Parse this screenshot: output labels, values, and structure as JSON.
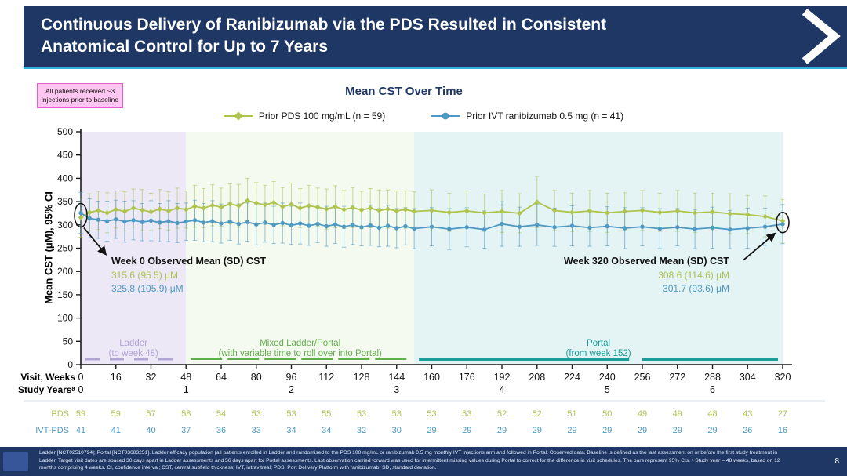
{
  "colors": {
    "navy": "#1f3765",
    "cyan_accent": "#2db3d8",
    "pink_bg": "#ffc6f1",
    "pink_border": "#e05fc9",
    "chart_title": "#1f3765"
  },
  "slide": {
    "title_line1": "Continuous Delivery of Ranibizumab via the PDS Resulted in Consistent",
    "title_line2": "Anatomical Control for Up to 7 Years",
    "page_number": "8",
    "footnote": "Ladder [NCT02510794]; Portal [NCT03683251]. Ladder efficacy population (all patients enrolled in Ladder and randomised to the PDS 100 mg/mL or ranibizumab 0.5 mg monthly IVT injections arm and followed in Portal. Observed data. Baseline is defined as the last assessment on or before the first study treatment in Ladder. Target visit dates are spaced 30 days apart in Ladder assessments and 56 days apart for Portal assessments. Last observation carried forward was used for intermittent missing values during Portal to correct for the difference in visit schedules. The bars represent 95% CIs. ᵃ Study year = 48 weeks, based on 12 months comprising 4 weeks. CI, confidence interval; CST, central subfield thickness; IVT, intravitreal; PDS, Port Delivery Platform with ranibizumab; SD, standard deviation."
  },
  "note_box": {
    "text": "All patients received ~3 injections prior to baseline"
  },
  "chart_data": {
    "type": "line",
    "title": "Mean CST Over Time",
    "ylabel": "Mean CST (μM), 95% CI",
    "ylim": [
      0,
      500
    ],
    "ytick_step": 50,
    "xlabel_row1": "Visit, Weeks",
    "xlabel_row2": "Study Yearsᵃ",
    "x_ticks": [
      0,
      16,
      32,
      48,
      64,
      80,
      96,
      112,
      128,
      144,
      160,
      176,
      192,
      208,
      224,
      240,
      256,
      272,
      288,
      304,
      320
    ],
    "study_years": [
      {
        "week": 0,
        "label": "0"
      },
      {
        "week": 48,
        "label": "1"
      },
      {
        "week": 96,
        "label": "2"
      },
      {
        "week": 144,
        "label": "3"
      },
      {
        "week": 192,
        "label": "4"
      },
      {
        "week": 240,
        "label": "5"
      },
      {
        "week": 288,
        "label": "6"
      }
    ],
    "phases": [
      {
        "label": "Ladder",
        "sublabel": "(to week 48)",
        "start": 0,
        "end": 48,
        "fill": "#ece8f6",
        "color": "#b1a4d8",
        "line": "dashed"
      },
      {
        "label": "Mixed Ladder/Portal",
        "sublabel": "(with variable time to roll over into Portal)",
        "start": 48,
        "end": 152,
        "fill": "#f4faef",
        "color": "#64ad4f",
        "line": "dashed"
      },
      {
        "label": "Portal",
        "sublabel": "(from week 152)",
        "start": 152,
        "end": 320,
        "fill": "#e4f3f4",
        "color": "#1a9e98",
        "line": "solid"
      }
    ],
    "series": [
      {
        "name": "Prior PDS 100 mg/mL (n = 59)",
        "color": "#aec44f",
        "marker": "diamond",
        "points": [
          [
            0,
            315.6,
            42
          ],
          [
            4,
            327,
            40
          ],
          [
            8,
            331,
            41
          ],
          [
            12,
            326,
            43
          ],
          [
            16,
            333,
            40
          ],
          [
            20,
            329,
            42
          ],
          [
            24,
            336,
            41
          ],
          [
            28,
            332,
            44
          ],
          [
            32,
            328,
            40
          ],
          [
            36,
            334,
            42
          ],
          [
            40,
            330,
            41
          ],
          [
            44,
            336,
            43
          ],
          [
            48,
            333,
            40
          ],
          [
            52,
            340,
            45
          ],
          [
            56,
            336,
            42
          ],
          [
            60,
            342,
            44
          ],
          [
            64,
            338,
            41
          ],
          [
            68,
            345,
            43
          ],
          [
            72,
            341,
            46
          ],
          [
            76,
            352,
            48
          ],
          [
            80,
            347,
            44
          ],
          [
            84,
            343,
            42
          ],
          [
            88,
            348,
            45
          ],
          [
            92,
            339,
            41
          ],
          [
            96,
            344,
            46
          ],
          [
            100,
            336,
            42
          ],
          [
            104,
            341,
            44
          ],
          [
            108,
            338,
            41
          ],
          [
            112,
            334,
            43
          ],
          [
            116,
            339,
            45
          ],
          [
            120,
            333,
            41
          ],
          [
            124,
            337,
            43
          ],
          [
            128,
            332,
            40
          ],
          [
            132,
            336,
            42
          ],
          [
            136,
            331,
            44
          ],
          [
            140,
            334,
            41
          ],
          [
            144,
            330,
            43
          ],
          [
            148,
            333,
            40
          ],
          [
            152,
            329,
            42
          ],
          [
            160,
            331,
            44
          ],
          [
            168,
            327,
            41
          ],
          [
            176,
            330,
            43
          ],
          [
            184,
            326,
            40
          ],
          [
            192,
            329,
            45
          ],
          [
            200,
            325,
            42
          ],
          [
            208,
            349,
            55
          ],
          [
            216,
            331,
            43
          ],
          [
            224,
            327,
            41
          ],
          [
            232,
            330,
            44
          ],
          [
            240,
            326,
            42
          ],
          [
            248,
            329,
            40
          ],
          [
            256,
            331,
            43
          ],
          [
            264,
            327,
            41
          ],
          [
            272,
            330,
            44
          ],
          [
            280,
            326,
            42
          ],
          [
            288,
            328,
            40
          ],
          [
            296,
            324,
            43
          ],
          [
            304,
            322,
            41
          ],
          [
            312,
            318,
            44
          ],
          [
            320,
            308.6,
            46
          ]
        ]
      },
      {
        "name": "Prior IVT ranibizumab 0.5 mg (n = 41)",
        "color": "#4e9ac2",
        "marker": "circle",
        "points": [
          [
            0,
            325.8,
            44
          ],
          [
            4,
            314,
            42
          ],
          [
            8,
            311,
            40
          ],
          [
            12,
            308,
            43
          ],
          [
            16,
            312,
            41
          ],
          [
            20,
            307,
            44
          ],
          [
            24,
            310,
            42
          ],
          [
            28,
            306,
            40
          ],
          [
            32,
            309,
            43
          ],
          [
            36,
            305,
            41
          ],
          [
            40,
            308,
            44
          ],
          [
            44,
            304,
            42
          ],
          [
            48,
            307,
            40
          ],
          [
            52,
            310,
            43
          ],
          [
            56,
            305,
            41
          ],
          [
            60,
            308,
            44
          ],
          [
            64,
            303,
            42
          ],
          [
            68,
            307,
            40
          ],
          [
            72,
            302,
            43
          ],
          [
            76,
            306,
            41
          ],
          [
            80,
            301,
            44
          ],
          [
            84,
            305,
            42
          ],
          [
            88,
            300,
            40
          ],
          [
            92,
            304,
            43
          ],
          [
            96,
            299,
            41
          ],
          [
            100,
            303,
            44
          ],
          [
            104,
            298,
            42
          ],
          [
            108,
            302,
            40
          ],
          [
            112,
            297,
            43
          ],
          [
            116,
            301,
            41
          ],
          [
            120,
            296,
            44
          ],
          [
            124,
            300,
            42
          ],
          [
            128,
            295,
            40
          ],
          [
            132,
            299,
            43
          ],
          [
            136,
            294,
            41
          ],
          [
            140,
            298,
            44
          ],
          [
            144,
            293,
            42
          ],
          [
            148,
            297,
            40
          ],
          [
            152,
            292,
            43
          ],
          [
            160,
            296,
            41
          ],
          [
            168,
            291,
            44
          ],
          [
            176,
            295,
            42
          ],
          [
            184,
            290,
            40
          ],
          [
            192,
            302,
            48
          ],
          [
            200,
            296,
            42
          ],
          [
            208,
            300,
            44
          ],
          [
            216,
            295,
            41
          ],
          [
            224,
            298,
            43
          ],
          [
            232,
            294,
            40
          ],
          [
            240,
            297,
            42
          ],
          [
            248,
            293,
            44
          ],
          [
            256,
            296,
            41
          ],
          [
            264,
            292,
            43
          ],
          [
            272,
            295,
            40
          ],
          [
            280,
            291,
            42
          ],
          [
            288,
            294,
            44
          ],
          [
            296,
            290,
            41
          ],
          [
            304,
            293,
            43
          ],
          [
            312,
            296,
            40
          ],
          [
            320,
            301.7,
            42
          ]
        ]
      }
    ],
    "annotations": [
      {
        "title": "Week 0 Observed Mean (SD) CST",
        "values": [
          {
            "text": "315.6 (95.5) μM",
            "series": 0
          },
          {
            "text": "325.8 (105.9) μM",
            "series": 1
          }
        ]
      },
      {
        "title": "Week 320 Observed Mean (SD) CST",
        "values": [
          {
            "text": "308.6 (114.6) μM",
            "series": 0
          },
          {
            "text": "301.7 (93.6) μM",
            "series": 1
          }
        ]
      }
    ],
    "table": {
      "rows": [
        {
          "label": "PDS",
          "color": "#aec44f",
          "values": [
            59,
            59,
            57,
            58,
            54,
            53,
            53,
            55,
            53,
            53,
            53,
            53,
            52,
            52,
            51,
            50,
            49,
            49,
            48,
            43,
            27
          ]
        },
        {
          "label": "IVT-PDS",
          "color": "#4e9ac2",
          "values": [
            41,
            41,
            40,
            37,
            36,
            33,
            34,
            34,
            32,
            30,
            29,
            29,
            29,
            29,
            29,
            29,
            29,
            29,
            29,
            26,
            16
          ]
        }
      ]
    }
  }
}
